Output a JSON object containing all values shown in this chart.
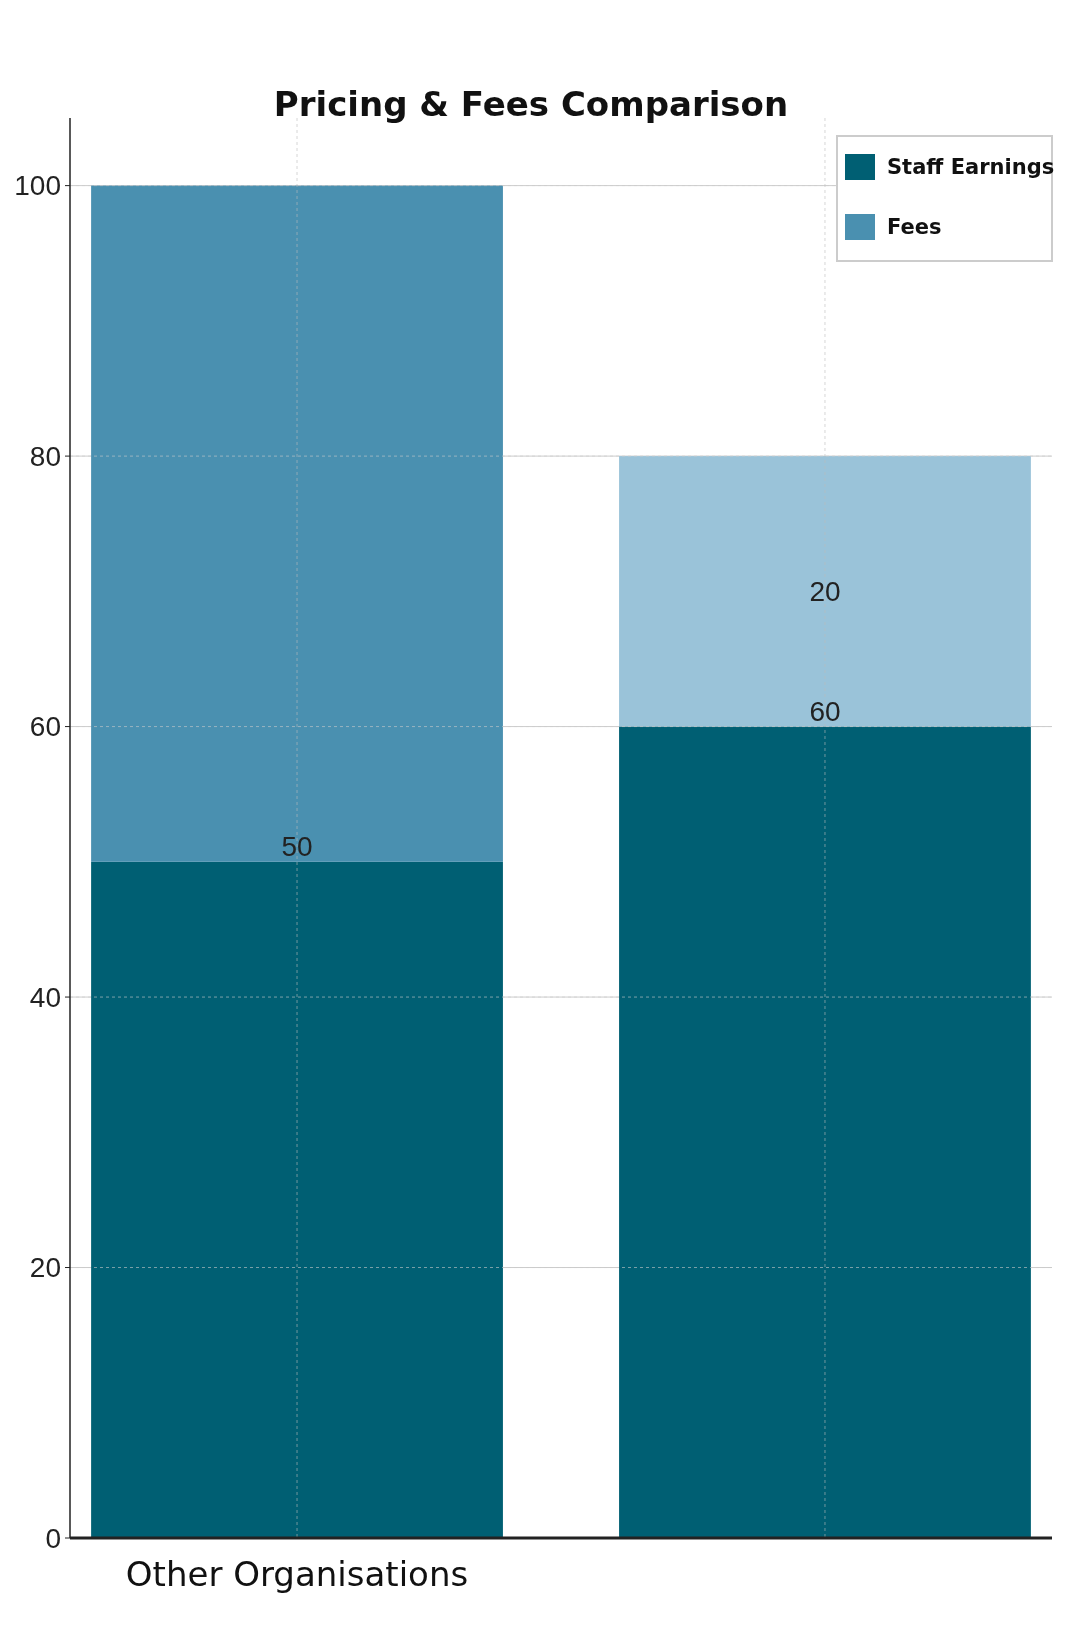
{
  "chart_data": {
    "type": "bar",
    "title": "Pricing & Fees Comparison",
    "categories": [
      "Other Organisations",
      null
    ],
    "stacked": true,
    "series": [
      {
        "name": "Staff Earnings",
        "color": "#005f73",
        "values": [
          50,
          60
        ],
        "value_labels": [
          "50",
          "60"
        ]
      },
      {
        "name": "Fees",
        "color": "#4a90b0",
        "colors": [
          "#4a90b0",
          "#9ac3d9"
        ],
        "values": [
          50,
          20
        ],
        "value_labels": [
          null,
          "20"
        ]
      }
    ],
    "ylim": [
      0,
      105
    ],
    "yticks": [
      0,
      20,
      40,
      60,
      80,
      100
    ],
    "grid": true,
    "legend": "top right"
  }
}
